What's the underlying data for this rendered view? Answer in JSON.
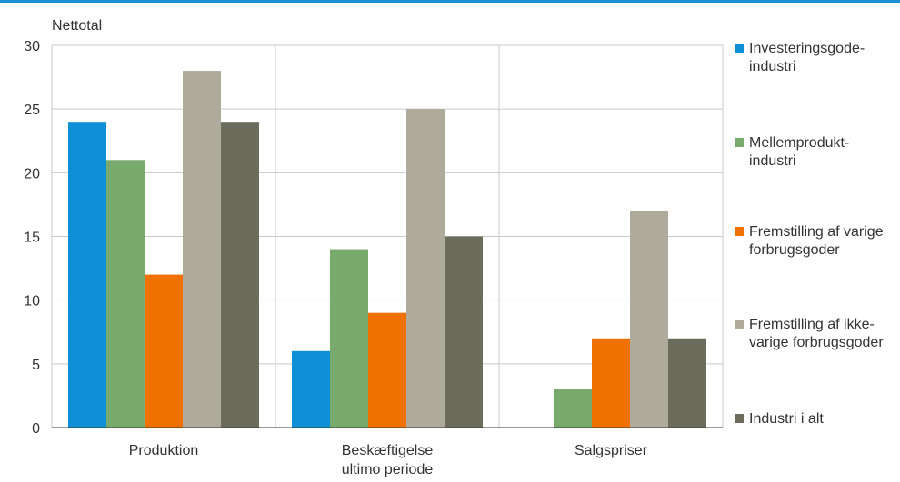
{
  "chart_data": {
    "type": "bar",
    "ylabel": "Nettotal",
    "ylim": [
      0,
      30
    ],
    "yticks": [
      0,
      5,
      10,
      15,
      20,
      25,
      30
    ],
    "grid": {
      "horizontal": true,
      "vertical_group_separators": true
    },
    "legend_position": "right",
    "categories": [
      "Produktion",
      "Beskæftigelse\nultimo periode",
      "Salgspriser"
    ],
    "series": [
      {
        "name": "Investeringsgode-\nindustri",
        "color": "#0f8fd6",
        "values": [
          24,
          6,
          0
        ]
      },
      {
        "name": "Mellemprodukt-\nindustri",
        "color": "#78aa6e",
        "values": [
          21,
          14,
          3
        ]
      },
      {
        "name": "Fremstilling af varige\nforbrugsgoder",
        "color": "#ef7100",
        "values": [
          12,
          9,
          7
        ]
      },
      {
        "name": "Fremstilling af ikke-\nvarige forbrugsgoder",
        "color": "#aeab9d",
        "values": [
          28,
          25,
          17
        ]
      },
      {
        "name": "Industri i alt",
        "color": "#6c6c5c",
        "values": [
          24,
          15,
          7
        ]
      }
    ]
  }
}
